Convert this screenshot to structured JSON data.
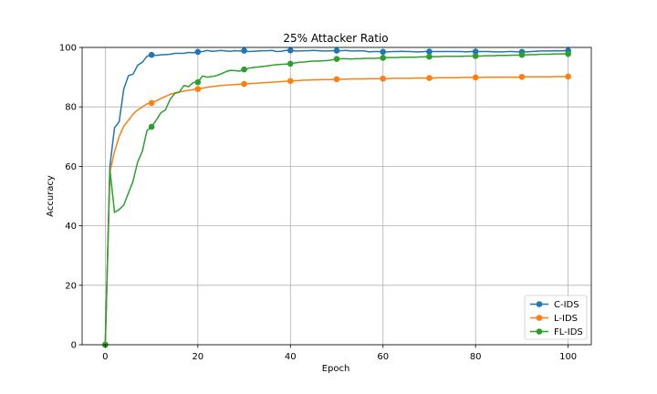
{
  "chart_data": {
    "type": "line",
    "title": "25% Attacker Ratio",
    "xlabel": "Epoch",
    "ylabel": "Accuracy",
    "xlim": [
      -5,
      105
    ],
    "ylim": [
      0,
      100
    ],
    "xticks": [
      0,
      20,
      40,
      60,
      80,
      100
    ],
    "yticks": [
      0,
      20,
      40,
      60,
      80,
      100
    ],
    "grid": true,
    "legend_position": "bottom-right",
    "marker_every": 10,
    "series": [
      {
        "name": "C-IDS",
        "color": "#1f77b4",
        "x": [
          0,
          1,
          2,
          3,
          4,
          5,
          6,
          7,
          8,
          9,
          10,
          11,
          12,
          13,
          14,
          15,
          16,
          17,
          18,
          19,
          20,
          21,
          22,
          23,
          24,
          25,
          26,
          27,
          28,
          29,
          30,
          31,
          32,
          33,
          34,
          35,
          36,
          37,
          38,
          39,
          40,
          41,
          42,
          43,
          44,
          45,
          46,
          47,
          48,
          49,
          50,
          51,
          52,
          53,
          54,
          55,
          56,
          57,
          58,
          59,
          60,
          61,
          62,
          63,
          64,
          65,
          66,
          67,
          68,
          69,
          70,
          71,
          72,
          73,
          74,
          75,
          76,
          77,
          78,
          79,
          80,
          81,
          82,
          83,
          84,
          85,
          86,
          87,
          88,
          89,
          90,
          91,
          92,
          93,
          94,
          95,
          96,
          97,
          98,
          99,
          100
        ],
        "y": [
          0,
          60,
          73,
          75,
          86,
          90.5,
          91,
          94,
          95,
          97,
          97.5,
          97.3,
          97.5,
          97.6,
          97.7,
          98,
          98,
          98,
          98.3,
          98.2,
          98.5,
          98.6,
          99,
          98.7,
          98.8,
          99,
          98.8,
          98.7,
          98.9,
          98.8,
          98.9,
          98.6,
          98.7,
          98.8,
          98.9,
          98.9,
          99,
          98.6,
          98.7,
          99,
          99,
          98.8,
          98.8,
          98.9,
          98.9,
          99,
          98.9,
          98.8,
          98.8,
          98.9,
          98.9,
          98.9,
          99,
          98.8,
          98.8,
          98.9,
          98.8,
          98.5,
          98.6,
          98.6,
          98.5,
          98.5,
          98.6,
          98.6,
          98.7,
          98.6,
          98.6,
          98.5,
          98.5,
          98.6,
          98.6,
          98.6,
          98.6,
          98.6,
          98.6,
          98.6,
          98.6,
          98.6,
          98.5,
          98.6,
          98.6,
          98.6,
          98.6,
          98.6,
          98.5,
          98.5,
          98.5,
          98.6,
          98.6,
          98.5,
          98.5,
          98.5,
          98.6,
          98.7,
          98.8,
          98.8,
          98.8,
          98.9,
          98.8,
          98.9,
          98.9
        ]
      },
      {
        "name": "L-IDS",
        "color": "#ff7f0e",
        "x": [
          0,
          1,
          2,
          3,
          4,
          5,
          6,
          7,
          8,
          9,
          10,
          11,
          12,
          13,
          14,
          15,
          16,
          17,
          18,
          19,
          20,
          21,
          22,
          23,
          24,
          25,
          26,
          27,
          28,
          29,
          30,
          31,
          32,
          33,
          34,
          35,
          36,
          37,
          38,
          39,
          40,
          41,
          42,
          43,
          44,
          45,
          46,
          47,
          48,
          49,
          50,
          51,
          52,
          53,
          54,
          55,
          56,
          57,
          58,
          59,
          60,
          61,
          62,
          63,
          64,
          65,
          66,
          67,
          68,
          69,
          70,
          71,
          72,
          73,
          74,
          75,
          76,
          77,
          78,
          79,
          80,
          81,
          82,
          83,
          84,
          85,
          86,
          87,
          88,
          89,
          90,
          91,
          92,
          93,
          94,
          95,
          96,
          97,
          98,
          99,
          100
        ],
        "y": [
          0,
          58,
          65,
          70,
          73.5,
          75.5,
          77.5,
          79,
          80,
          81,
          81.3,
          82,
          82.8,
          83.5,
          84.2,
          84.7,
          85,
          85.3,
          85.6,
          85.8,
          86,
          86.3,
          86.6,
          86.8,
          87,
          87.2,
          87.3,
          87.4,
          87.5,
          87.6,
          87.7,
          87.8,
          87.9,
          88,
          88.1,
          88.2,
          88.3,
          88.4,
          88.5,
          88.6,
          88.7,
          88.8,
          88.9,
          89,
          89,
          89.1,
          89.1,
          89.2,
          89.2,
          89.2,
          89.3,
          89.3,
          89.3,
          89.4,
          89.4,
          89.4,
          89.4,
          89.5,
          89.5,
          89.5,
          89.5,
          89.5,
          89.6,
          89.6,
          89.6,
          89.6,
          89.6,
          89.7,
          89.7,
          89.7,
          89.7,
          89.7,
          89.8,
          89.8,
          89.8,
          89.8,
          89.8,
          89.9,
          89.9,
          89.9,
          89.9,
          89.9,
          90,
          90,
          90,
          90,
          90,
          90,
          90,
          90,
          90.1,
          90.1,
          90.1,
          90.1,
          90.1,
          90.1,
          90.1,
          90.2,
          90.2,
          90.2,
          90.2
        ]
      },
      {
        "name": "FL-IDS",
        "color": "#2ca02c",
        "x": [
          0,
          1,
          2,
          3,
          4,
          5,
          6,
          7,
          8,
          9,
          10,
          11,
          12,
          13,
          14,
          15,
          16,
          17,
          18,
          19,
          20,
          21,
          22,
          23,
          24,
          25,
          26,
          27,
          28,
          29,
          30,
          31,
          32,
          33,
          34,
          35,
          36,
          37,
          38,
          39,
          40,
          41,
          42,
          43,
          44,
          45,
          46,
          47,
          48,
          49,
          50,
          51,
          52,
          53,
          54,
          55,
          56,
          57,
          58,
          59,
          60,
          61,
          62,
          63,
          64,
          65,
          66,
          67,
          68,
          69,
          70,
          71,
          72,
          73,
          74,
          75,
          76,
          77,
          78,
          79,
          80,
          81,
          82,
          83,
          84,
          85,
          86,
          87,
          88,
          89,
          90,
          91,
          92,
          93,
          94,
          95,
          96,
          97,
          98,
          99,
          100
        ],
        "y": [
          0,
          59,
          44.5,
          45.5,
          47,
          51,
          55,
          61.5,
          65,
          72,
          73.3,
          75.5,
          78,
          79,
          82.5,
          84.5,
          85,
          87.2,
          86.8,
          88.2,
          88.3,
          90.4,
          90,
          90.2,
          90.5,
          91.1,
          91.8,
          92.3,
          92.2,
          92,
          92.6,
          93,
          93.3,
          93.4,
          93.6,
          93.8,
          94,
          94.2,
          94.3,
          94.4,
          94.5,
          94.8,
          95,
          95.1,
          95.3,
          95.4,
          95.4,
          95.5,
          95.6,
          95.8,
          96.1,
          96.2,
          96.2,
          96.1,
          96.2,
          96.2,
          96.3,
          96.3,
          96.3,
          96.4,
          96.5,
          96.6,
          96.6,
          96.6,
          96.7,
          96.7,
          96.7,
          96.7,
          96.8,
          96.8,
          96.9,
          96.9,
          96.9,
          97,
          97,
          97,
          97,
          97,
          97.1,
          97.1,
          97.1,
          97.1,
          97.2,
          97.2,
          97.2,
          97.3,
          97.3,
          97.3,
          97.4,
          97.4,
          97.5,
          97.5,
          97.6,
          97.6,
          97.7,
          97.7,
          97.7,
          97.8,
          97.8,
          97.8,
          97.8
        ]
      }
    ]
  }
}
